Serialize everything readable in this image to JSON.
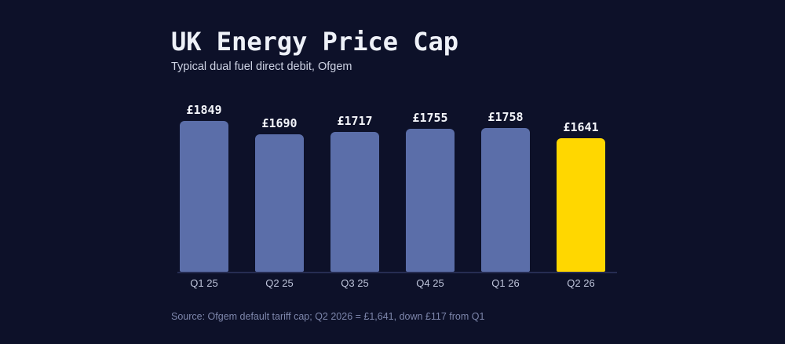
{
  "header": {
    "title": "UK Energy Price Cap",
    "subtitle": "Typical dual fuel direct debit, Ofgem"
  },
  "footer": {
    "source": "Source: Ofgem default tariff cap; Q2 2026 = £1,641, down £117 from Q1"
  },
  "colors": {
    "background": "#0d1129",
    "bar_default": "#5b6ea9",
    "bar_highlight": "#ffd700",
    "title_text": "#eef1f8",
    "subtitle_text": "#ced3e4",
    "value_label_text": "#f3f5fa",
    "tick_label_text": "#bfc5db",
    "source_text": "#7d86ab",
    "baseline": "#262d52"
  },
  "chart_data": {
    "type": "bar",
    "title": "UK Energy Price Cap",
    "subtitle": "Typical dual fuel direct debit, Ofgem",
    "categories": [
      "Q1 25",
      "Q2 25",
      "Q3 25",
      "Q4 25",
      "Q1 26",
      "Q2 26"
    ],
    "values": [
      1849,
      1690,
      1717,
      1755,
      1758,
      1641
    ],
    "value_labels": [
      "£1849",
      "£1690",
      "£1717",
      "£1755",
      "£1758",
      "£1641"
    ],
    "xlabel": "",
    "ylabel": "",
    "ylim": [
      0,
      1849
    ],
    "highlight_index": 5,
    "grid": false,
    "legend": false,
    "source": "Source: Ofgem default tariff cap; Q2 2026 = £1,641, down £117 from Q1"
  }
}
